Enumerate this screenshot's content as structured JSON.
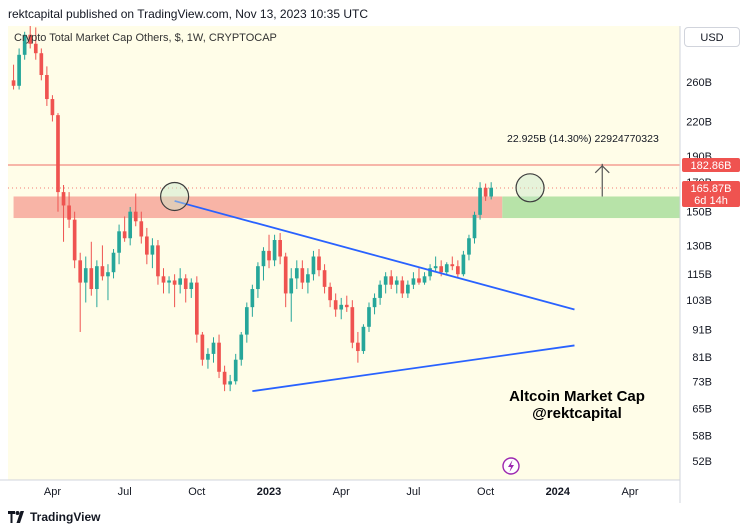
{
  "header": {
    "published": "rektcapital published on TradingView.com, Nov 13, 2023 10:35 UTC"
  },
  "footer": {
    "brand": "TradingView"
  },
  "currency_button": "USD",
  "colors": {
    "background": "#fffde8",
    "up": "#26a69a",
    "down": "#ef5350",
    "trendline": "#2962ff",
    "resistance": "#f28b82",
    "resistance_zone": "#f8b4a6",
    "target_zone": "#b7e3a8",
    "circle_fill": "#c8e6c9",
    "circle_stroke": "#3d3d3d",
    "watermark_icon": "#9c27b0"
  },
  "chart_data": {
    "type": "candlestick",
    "title": "Crypto Total Market Cap Others, $, 1W, CRYPTOCAP",
    "y_scale": "log",
    "ylim": [
      48,
      330
    ],
    "y_ticks": [
      {
        "value": 260,
        "label": "260B"
      },
      {
        "value": 220,
        "label": "220B"
      },
      {
        "value": 190,
        "label": "190B"
      },
      {
        "value": 170,
        "label": "170B"
      },
      {
        "value": 150,
        "label": "150B"
      },
      {
        "value": 130,
        "label": "130B"
      },
      {
        "value": 115,
        "label": "115B"
      },
      {
        "value": 103,
        "label": "103B"
      },
      {
        "value": 91,
        "label": "91B"
      },
      {
        "value": 81,
        "label": "81B"
      },
      {
        "value": 73,
        "label": "73B"
      },
      {
        "value": 65,
        "label": "65B"
      },
      {
        "value": 58,
        "label": "58B"
      },
      {
        "value": 52,
        "label": "52B"
      }
    ],
    "x_ticks": [
      {
        "week": 1,
        "label": "Apr",
        "bold": false
      },
      {
        "week": 14,
        "label": "Jul",
        "bold": false
      },
      {
        "week": 27,
        "label": "Oct",
        "bold": false
      },
      {
        "week": 40,
        "label": "2023",
        "bold": true
      },
      {
        "week": 53,
        "label": "Apr",
        "bold": false
      },
      {
        "week": 66,
        "label": "Jul",
        "bold": false
      },
      {
        "week": 79,
        "label": "Oct",
        "bold": false
      },
      {
        "week": 92,
        "label": "2024",
        "bold": true
      },
      {
        "week": 105,
        "label": "Apr",
        "bold": false
      }
    ],
    "price_labels": [
      {
        "value": 182.86,
        "label": "182.86B",
        "color": "#ef5350"
      },
      {
        "value": 165.87,
        "label": "165.87B",
        "sublabel": "6d 14h",
        "color": "#ef5350"
      }
    ],
    "resistance_level": 182.86,
    "current_price": 165.87,
    "measure_label": "22.925B (14.30%) 22924770323",
    "measure": {
      "week_x": 100,
      "from": 160,
      "to": 183
    },
    "zones": [
      {
        "name": "resistance-zone",
        "week_start": -6,
        "week_end": 82,
        "low": 146,
        "high": 160
      },
      {
        "name": "target-zone",
        "week_start": 82,
        "week_end": 114,
        "low": 146,
        "high": 160
      }
    ],
    "trendlines": [
      {
        "name": "descending",
        "points": [
          [
            23,
            157
          ],
          [
            95,
            99
          ]
        ]
      },
      {
        "name": "ascending",
        "points": [
          [
            37,
            70
          ],
          [
            95,
            85
          ]
        ]
      }
    ],
    "circles": [
      {
        "week": 23,
        "value": 160
      },
      {
        "week": 87,
        "value": 166
      }
    ],
    "annotation": [
      "Altcoin Market Cap",
      "@rektcapital"
    ],
    "candles": [
      {
        "w": -6,
        "o": 262,
        "h": 280,
        "l": 252,
        "c": 256
      },
      {
        "w": -5,
        "o": 256,
        "h": 300,
        "l": 252,
        "c": 292
      },
      {
        "w": -4,
        "o": 292,
        "h": 322,
        "l": 286,
        "c": 318
      },
      {
        "w": -3,
        "o": 318,
        "h": 330,
        "l": 300,
        "c": 306
      },
      {
        "w": -2,
        "o": 306,
        "h": 328,
        "l": 286,
        "c": 294
      },
      {
        "w": -1,
        "o": 294,
        "h": 300,
        "l": 262,
        "c": 268
      },
      {
        "w": 0,
        "o": 268,
        "h": 278,
        "l": 235,
        "c": 242
      },
      {
        "w": 1,
        "o": 242,
        "h": 246,
        "l": 220,
        "c": 226
      },
      {
        "w": 2,
        "o": 226,
        "h": 228,
        "l": 150,
        "c": 163
      },
      {
        "w": 3,
        "o": 163,
        "h": 168,
        "l": 132,
        "c": 154
      },
      {
        "w": 4,
        "o": 154,
        "h": 163,
        "l": 140,
        "c": 145
      },
      {
        "w": 5,
        "o": 145,
        "h": 150,
        "l": 118,
        "c": 122
      },
      {
        "w": 6,
        "o": 122,
        "h": 126,
        "l": 90,
        "c": 111
      },
      {
        "w": 7,
        "o": 111,
        "h": 124,
        "l": 102,
        "c": 118
      },
      {
        "w": 8,
        "o": 118,
        "h": 132,
        "l": 105,
        "c": 108
      },
      {
        "w": 9,
        "o": 108,
        "h": 122,
        "l": 100,
        "c": 119
      },
      {
        "w": 10,
        "o": 119,
        "h": 130,
        "l": 112,
        "c": 114
      },
      {
        "w": 11,
        "o": 114,
        "h": 120,
        "l": 103,
        "c": 116
      },
      {
        "w": 12,
        "o": 116,
        "h": 128,
        "l": 113,
        "c": 126
      },
      {
        "w": 13,
        "o": 126,
        "h": 142,
        "l": 120,
        "c": 138
      },
      {
        "w": 14,
        "o": 138,
        "h": 147,
        "l": 132,
        "c": 134
      },
      {
        "w": 15,
        "o": 134,
        "h": 153,
        "l": 130,
        "c": 150
      },
      {
        "w": 16,
        "o": 150,
        "h": 162,
        "l": 141,
        "c": 144
      },
      {
        "w": 17,
        "o": 144,
        "h": 150,
        "l": 131,
        "c": 135
      },
      {
        "w": 18,
        "o": 135,
        "h": 140,
        "l": 120,
        "c": 125
      },
      {
        "w": 19,
        "o": 125,
        "h": 134,
        "l": 118,
        "c": 130
      },
      {
        "w": 20,
        "o": 130,
        "h": 133,
        "l": 110,
        "c": 114
      },
      {
        "w": 21,
        "o": 114,
        "h": 118,
        "l": 106,
        "c": 111
      },
      {
        "w": 22,
        "o": 111,
        "h": 114,
        "l": 106,
        "c": 112
      },
      {
        "w": 23,
        "o": 112,
        "h": 115,
        "l": 100,
        "c": 110
      },
      {
        "w": 24,
        "o": 110,
        "h": 118,
        "l": 106,
        "c": 113
      },
      {
        "w": 25,
        "o": 113,
        "h": 115,
        "l": 102,
        "c": 108
      },
      {
        "w": 26,
        "o": 108,
        "h": 113,
        "l": 104,
        "c": 111
      },
      {
        "w": 27,
        "o": 111,
        "h": 114,
        "l": 86,
        "c": 89
      },
      {
        "w": 28,
        "o": 89,
        "h": 90,
        "l": 78,
        "c": 80
      },
      {
        "w": 29,
        "o": 80,
        "h": 84,
        "l": 77,
        "c": 82
      },
      {
        "w": 30,
        "o": 82,
        "h": 88,
        "l": 79,
        "c": 86
      },
      {
        "w": 31,
        "o": 86,
        "h": 89,
        "l": 74,
        "c": 76
      },
      {
        "w": 32,
        "o": 76,
        "h": 78,
        "l": 70,
        "c": 72
      },
      {
        "w": 33,
        "o": 72,
        "h": 75,
        "l": 70,
        "c": 73
      },
      {
        "w": 34,
        "o": 73,
        "h": 82,
        "l": 72,
        "c": 80
      },
      {
        "w": 35,
        "o": 80,
        "h": 90,
        "l": 78,
        "c": 89
      },
      {
        "w": 36,
        "o": 89,
        "h": 102,
        "l": 86,
        "c": 100
      },
      {
        "w": 37,
        "o": 100,
        "h": 110,
        "l": 96,
        "c": 108
      },
      {
        "w": 38,
        "o": 108,
        "h": 121,
        "l": 104,
        "c": 119
      },
      {
        "w": 39,
        "o": 119,
        "h": 129,
        "l": 112,
        "c": 127
      },
      {
        "w": 40,
        "o": 127,
        "h": 136,
        "l": 118,
        "c": 122
      },
      {
        "w": 41,
        "o": 122,
        "h": 136,
        "l": 119,
        "c": 133
      },
      {
        "w": 42,
        "o": 133,
        "h": 137,
        "l": 120,
        "c": 124
      },
      {
        "w": 43,
        "o": 124,
        "h": 126,
        "l": 100,
        "c": 106
      },
      {
        "w": 44,
        "o": 106,
        "h": 118,
        "l": 94,
        "c": 113
      },
      {
        "w": 45,
        "o": 113,
        "h": 122,
        "l": 108,
        "c": 118
      },
      {
        "w": 46,
        "o": 118,
        "h": 122,
        "l": 108,
        "c": 111
      },
      {
        "w": 47,
        "o": 111,
        "h": 118,
        "l": 106,
        "c": 115
      },
      {
        "w": 48,
        "o": 115,
        "h": 127,
        "l": 112,
        "c": 124
      },
      {
        "w": 49,
        "o": 124,
        "h": 128,
        "l": 114,
        "c": 117
      },
      {
        "w": 50,
        "o": 117,
        "h": 120,
        "l": 106,
        "c": 109
      },
      {
        "w": 51,
        "o": 109,
        "h": 111,
        "l": 100,
        "c": 103
      },
      {
        "w": 52,
        "o": 103,
        "h": 106,
        "l": 96,
        "c": 99
      },
      {
        "w": 53,
        "o": 99,
        "h": 104,
        "l": 95,
        "c": 101
      },
      {
        "w": 54,
        "o": 101,
        "h": 105,
        "l": 98,
        "c": 100
      },
      {
        "w": 55,
        "o": 100,
        "h": 103,
        "l": 84,
        "c": 86
      },
      {
        "w": 56,
        "o": 86,
        "h": 90,
        "l": 79,
        "c": 83
      },
      {
        "w": 57,
        "o": 83,
        "h": 93,
        "l": 82,
        "c": 92
      },
      {
        "w": 58,
        "o": 92,
        "h": 102,
        "l": 90,
        "c": 100
      },
      {
        "w": 59,
        "o": 100,
        "h": 106,
        "l": 97,
        "c": 104
      },
      {
        "w": 60,
        "o": 104,
        "h": 112,
        "l": 101,
        "c": 110
      },
      {
        "w": 61,
        "o": 110,
        "h": 116,
        "l": 106,
        "c": 114
      },
      {
        "w": 62,
        "o": 114,
        "h": 117,
        "l": 108,
        "c": 110
      },
      {
        "w": 63,
        "o": 110,
        "h": 114,
        "l": 106,
        "c": 112
      },
      {
        "w": 64,
        "o": 112,
        "h": 114,
        "l": 104,
        "c": 106
      },
      {
        "w": 65,
        "o": 106,
        "h": 112,
        "l": 104,
        "c": 110
      },
      {
        "w": 66,
        "o": 110,
        "h": 116,
        "l": 108,
        "c": 113
      },
      {
        "w": 67,
        "o": 113,
        "h": 118,
        "l": 110,
        "c": 111
      },
      {
        "w": 68,
        "o": 111,
        "h": 116,
        "l": 110,
        "c": 114
      },
      {
        "w": 69,
        "o": 114,
        "h": 120,
        "l": 112,
        "c": 118
      },
      {
        "w": 70,
        "o": 118,
        "h": 124,
        "l": 116,
        "c": 119
      },
      {
        "w": 71,
        "o": 119,
        "h": 122,
        "l": 114,
        "c": 116
      },
      {
        "w": 72,
        "o": 116,
        "h": 121,
        "l": 115,
        "c": 120
      },
      {
        "w": 73,
        "o": 120,
        "h": 124,
        "l": 117,
        "c": 119
      },
      {
        "w": 74,
        "o": 119,
        "h": 122,
        "l": 113,
        "c": 115
      },
      {
        "w": 75,
        "o": 115,
        "h": 127,
        "l": 114,
        "c": 125
      },
      {
        "w": 76,
        "o": 125,
        "h": 136,
        "l": 122,
        "c": 134
      },
      {
        "w": 77,
        "o": 134,
        "h": 150,
        "l": 131,
        "c": 148
      },
      {
        "w": 78,
        "o": 148,
        "h": 170,
        "l": 145,
        "c": 166
      },
      {
        "w": 79,
        "o": 166,
        "h": 169,
        "l": 157,
        "c": 160
      },
      {
        "w": 80,
        "o": 160,
        "h": 170,
        "l": 158,
        "c": 166
      }
    ]
  }
}
